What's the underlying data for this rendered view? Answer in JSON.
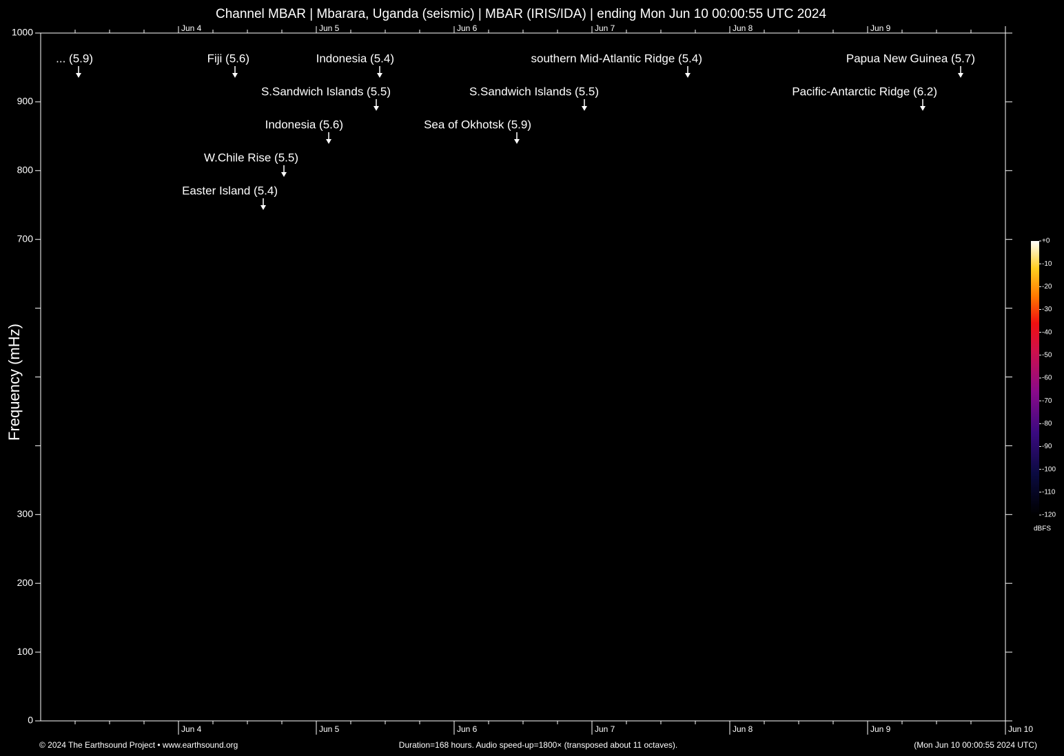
{
  "chart_data": {
    "type": "spectrogram",
    "title": "Channel MBAR | Mbarara, Uganda (seismic) | MBAR (IRIS/IDA) | ending Mon Jun 10 00:00:55 UTC 2024",
    "y_label": "Frequency (mHz)",
    "ylim": [
      0,
      1000
    ],
    "yticks": [
      0,
      100,
      200,
      300,
      {
        "value": 400,
        "label": null
      },
      {
        "value": 500,
        "label": null
      },
      {
        "value": 600,
        "label": null
      },
      700,
      800,
      900,
      1000
    ],
    "xlim": [
      3,
      10
    ],
    "xticks": [
      {
        "value": 3.25,
        "label": null
      },
      {
        "value": 3.5,
        "label": null
      },
      {
        "value": 3.75,
        "label": null
      },
      {
        "value": 4,
        "label": "Jun 4"
      },
      {
        "value": 4.25,
        "label": null
      },
      {
        "value": 4.5,
        "label": null
      },
      {
        "value": 4.75,
        "label": null
      },
      {
        "value": 5,
        "label": "Jun 5"
      },
      {
        "value": 5.25,
        "label": null
      },
      {
        "value": 5.5,
        "label": null
      },
      {
        "value": 5.75,
        "label": null
      },
      {
        "value": 6,
        "label": "Jun 6"
      },
      {
        "value": 6.25,
        "label": null
      },
      {
        "value": 6.5,
        "label": null
      },
      {
        "value": 6.75,
        "label": null
      },
      {
        "value": 7,
        "label": "Jun 7"
      },
      {
        "value": 7.25,
        "label": null
      },
      {
        "value": 7.5,
        "label": null
      },
      {
        "value": 7.75,
        "label": null
      },
      {
        "value": 8,
        "label": "Jun 8"
      },
      {
        "value": 8.25,
        "label": null
      },
      {
        "value": 8.5,
        "label": null
      },
      {
        "value": 8.75,
        "label": null
      },
      {
        "value": 9,
        "label": "Jun 9"
      },
      {
        "value": 9.25,
        "label": null
      },
      {
        "value": 9.5,
        "label": null
      },
      {
        "value": 9.75,
        "label": null
      },
      {
        "value": 10,
        "label": "Jun 10"
      }
    ],
    "annotations": [
      {
        "text": "... (5.9)",
        "x": 3.275
      },
      {
        "text": "Fiji (5.6)",
        "x": 4.41
      },
      {
        "text": "Indonesia (5.4)",
        "x": 5.46
      },
      {
        "text": "southern Mid-Atlantic Ridge (5.4)",
        "x": 7.695
      },
      {
        "text": "Papua New Guinea (5.7)",
        "x": 9.675
      },
      {
        "text": "S.Sandwich Islands (5.5)",
        "x": 5.435
      },
      {
        "text": "S.Sandwich Islands (5.5)",
        "x": 6.945
      },
      {
        "text": "Pacific-Antarctic Ridge (6.2)",
        "x": 9.4
      },
      {
        "text": "Indonesia (5.6)",
        "x": 5.09
      },
      {
        "text": "Sea of Okhotsk (5.9)",
        "x": 6.455
      },
      {
        "text": "W.Chile Rise (5.5)",
        "x": 4.765
      },
      {
        "text": "Easter Island (5.4)",
        "x": 4.615
      }
    ],
    "colorbar": {
      "label": "dBFS",
      "lim": [
        -120,
        0
      ],
      "ticks": [
        {
          "value": 0,
          "label": "+0"
        },
        -10,
        -20,
        -30,
        -40,
        -50,
        -60,
        -70,
        -80,
        -90,
        -100,
        -110,
        -120
      ]
    },
    "footer_left": "© 2024 The Earthsound Project • www.earthsound.org",
    "footer_center": "Duration=168 hours. Audio speed-up=1800× (transposed about 11 octaves).",
    "footer_right": "(Mon Jun 10 00:00:55 2024 UTC)"
  }
}
